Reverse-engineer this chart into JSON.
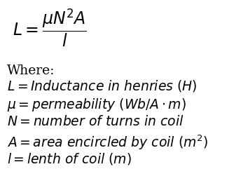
{
  "background_color": "#ffffff",
  "formula": "$L = \\dfrac{\\mu N^2 A}{l}$",
  "where_label": "Where:",
  "lines": [
    "$L = Inductance\\ in\\ henries\\ (H)$",
    "$\\mu = permeability\\ (Wb/A \\cdot m)$",
    "$N = number\\ of\\ turns\\ in\\ coil$",
    "$A = area\\ encircled\\ by\\ coil\\ (m^2)$",
    "$l = lenth\\ of\\ coil\\ (m)$"
  ],
  "formula_fontsize": 17,
  "where_fontsize": 13.5,
  "line_fontsize": 13.5,
  "fig_width": 3.54,
  "fig_height": 2.41,
  "dpi": 100
}
